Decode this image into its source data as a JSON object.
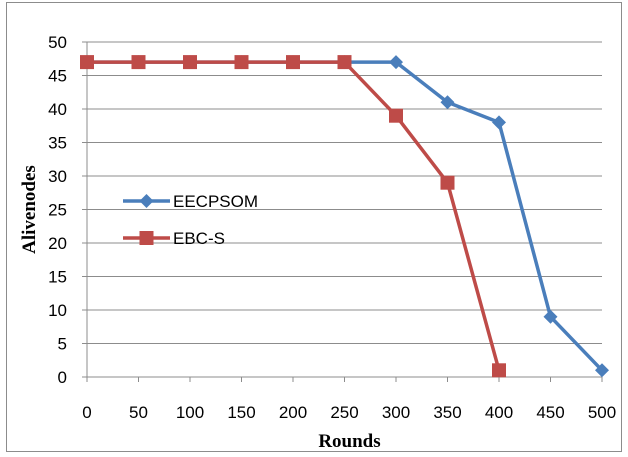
{
  "chart_data": {
    "type": "line",
    "title": "",
    "xlabel": "Rounds",
    "ylabel": "Alivenodes",
    "x": [
      0,
      50,
      100,
      150,
      200,
      250,
      300,
      350,
      400,
      450,
      500
    ],
    "xlim": [
      0,
      500
    ],
    "ylim": [
      0,
      50
    ],
    "y_ticks": [
      0,
      5,
      10,
      15,
      20,
      25,
      30,
      35,
      40,
      45,
      50
    ],
    "x_tick_labels": [
      "0",
      "50",
      "100",
      "150",
      "200",
      "250",
      "300",
      "350",
      "400",
      "450",
      "500"
    ],
    "y_tick_labels": [
      "0",
      "5",
      "10",
      "15",
      "20",
      "25",
      "30",
      "35",
      "40",
      "45",
      "50"
    ],
    "grid": "horizontal",
    "legend_position": "center-left",
    "series": [
      {
        "name": "EECPSOM",
        "color": "#4a7ebb",
        "marker": "diamond",
        "x": [
          0,
          50,
          100,
          150,
          200,
          250,
          300,
          350,
          400,
          450,
          500
        ],
        "values": [
          47,
          47,
          47,
          47,
          47,
          47,
          47,
          41,
          38,
          9,
          1
        ]
      },
      {
        "name": "EBC-S",
        "color": "#be4b48",
        "marker": "square",
        "x": [
          0,
          50,
          100,
          150,
          200,
          250,
          300,
          350,
          400
        ],
        "values": [
          47,
          47,
          47,
          47,
          47,
          47,
          39,
          29,
          1
        ]
      }
    ]
  }
}
